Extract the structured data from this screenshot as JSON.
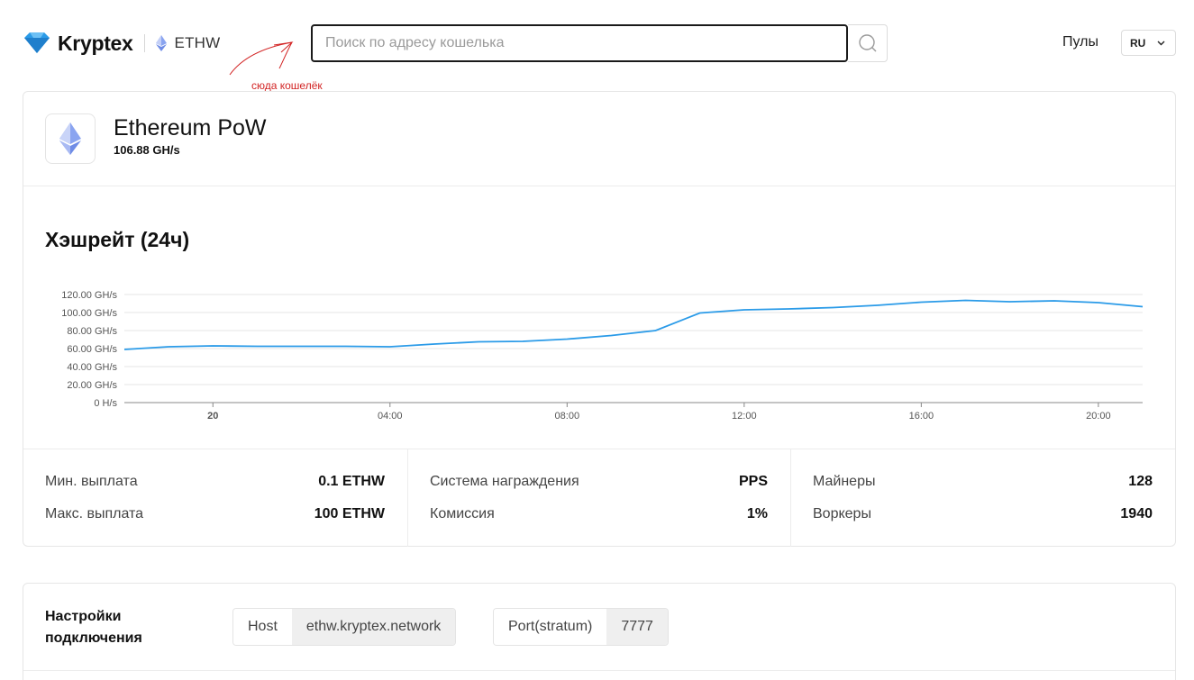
{
  "header": {
    "brand": "Kryptex",
    "coin_ticker": "ETHW",
    "search_placeholder": "Поиск по адресу кошелька",
    "search_value": "",
    "annotation": "сюда кошелёк",
    "nav_pools": "Пулы",
    "language": "RU"
  },
  "coin": {
    "name": "Ethereum PoW",
    "hashrate": "106.88 GH/s"
  },
  "chart_section": {
    "title": "Хэшрейт (24ч)"
  },
  "chart_data": {
    "type": "line",
    "title": "",
    "xlabel": "",
    "ylabel": "",
    "ylim": [
      0,
      120
    ],
    "y_ticks": [
      "0 H/s",
      "20.00 GH/s",
      "40.00 GH/s",
      "60.00 GH/s",
      "80.00 GH/s",
      "100.00 GH/s",
      "120.00 GH/s"
    ],
    "y_tick_values": [
      0,
      20,
      40,
      60,
      80,
      100,
      120
    ],
    "x_ticks": [
      "20",
      "04:00",
      "08:00",
      "12:00",
      "16:00",
      "20:00"
    ],
    "x_tick_hours": [
      0,
      4,
      8,
      12,
      16,
      20
    ],
    "x_range_hours": [
      -2,
      21
    ],
    "grid": true,
    "series": [
      {
        "color": "#2b9be8",
        "x_hours": [
          -2,
          -1,
          0,
          1,
          2,
          3,
          4,
          5,
          6,
          7,
          8,
          9,
          10,
          11,
          12,
          13,
          14,
          15,
          16,
          17,
          18,
          19,
          20,
          21
        ],
        "values": [
          59,
          62,
          63,
          62.5,
          62.5,
          62.5,
          62,
          65,
          67.5,
          68,
          70.5,
          74.5,
          80,
          99.5,
          103,
          104,
          105.5,
          108,
          111.5,
          113.5,
          112,
          113,
          111,
          106.5
        ]
      }
    ]
  },
  "stats": {
    "min_payout_label": "Мин. выплата",
    "min_payout_value": "0.1 ETHW",
    "max_payout_label": "Макс. выплата",
    "max_payout_value": "100 ETHW",
    "reward_system_label": "Система награждения",
    "reward_system_value": "PPS",
    "fee_label": "Комиссия",
    "fee_value": "1%",
    "miners_label": "Майнеры",
    "miners_value": "128",
    "workers_label": "Воркеры",
    "workers_value": "1940"
  },
  "connection": {
    "title": "Настройки подключения",
    "host_label": "Host",
    "host_value": "ethw.kryptex.network",
    "port_label": "Port(stratum)",
    "port_value": "7777"
  },
  "colors": {
    "brand_blue": "#2b9be8",
    "annotation_red": "#d22222"
  }
}
